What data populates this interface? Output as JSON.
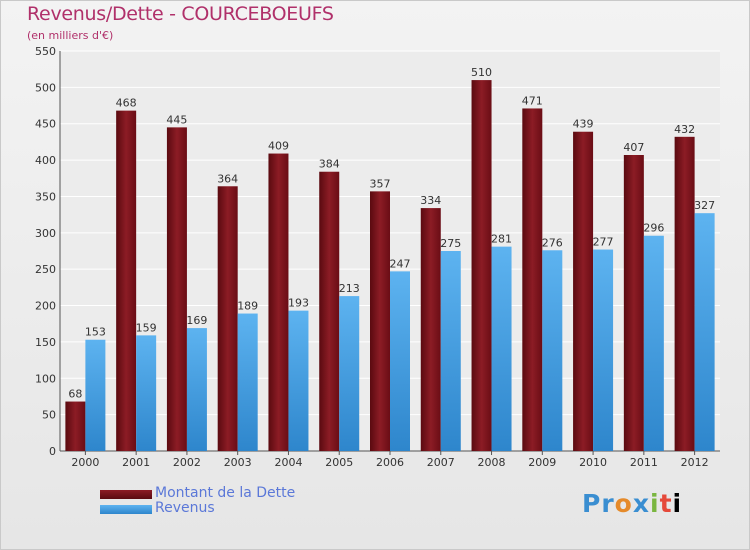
{
  "header": {
    "title": "Revenus/Dette - COURCEBOEUFS",
    "subtitle": "(en milliers d'€)"
  },
  "legend": [
    {
      "label": "Montant de la Dette",
      "color": "#7a1018"
    },
    {
      "label": "Revenus",
      "color": "#4aa6e8"
    }
  ],
  "logo": {
    "text": "Proxiti"
  },
  "colors": {
    "title": "#b0306a",
    "dette_bar": "#7a1018",
    "revenus_bar": "#4aa6e8",
    "axis_text": "#333333"
  },
  "chart_data": {
    "type": "bar",
    "title": "Revenus/Dette - COURCEBOEUFS",
    "subtitle": "(en milliers d'€)",
    "categories": [
      "2000",
      "2001",
      "2002",
      "2003",
      "2004",
      "2005",
      "2006",
      "2007",
      "2008",
      "2009",
      "2010",
      "2011",
      "2012"
    ],
    "series": [
      {
        "name": "Montant de la Dette",
        "values": [
          68,
          468,
          445,
          364,
          409,
          384,
          357,
          334,
          510,
          471,
          439,
          407,
          432
        ]
      },
      {
        "name": "Revenus",
        "values": [
          153,
          159,
          169,
          189,
          193,
          213,
          247,
          275,
          281,
          276,
          277,
          296,
          327
        ]
      }
    ],
    "ylim": [
      0,
      550
    ],
    "yticks": [
      0,
      50,
      100,
      150,
      200,
      250,
      300,
      350,
      400,
      450,
      500,
      550
    ],
    "grid": true,
    "legend_position": "bottom-left"
  }
}
